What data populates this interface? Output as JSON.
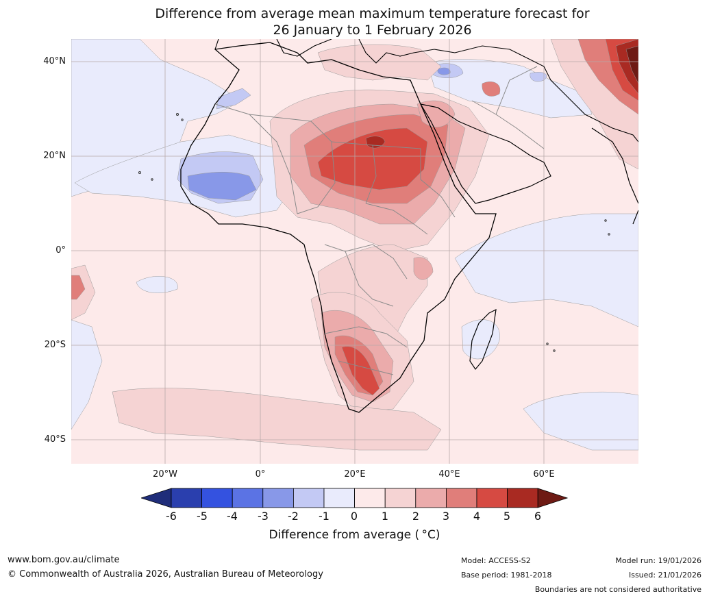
{
  "title": {
    "line1": "Difference from average mean maximum temperature forecast for",
    "line2": "26 January to 1 February 2026"
  },
  "axes": {
    "lat_labels": [
      "40°N",
      "20°N",
      "0°",
      "20°S",
      "40°S"
    ],
    "lon_labels": [
      "20°W",
      "0°",
      "20°E",
      "40°E",
      "60°E"
    ]
  },
  "colorbar": {
    "ticks": [
      "-6",
      "-5",
      "-4",
      "-3",
      "-2",
      "-1",
      "0",
      "1",
      "2",
      "3",
      "4",
      "5",
      "6"
    ],
    "label": "Difference from average ( °C)",
    "colors": {
      "below_min": "#1f2d7a",
      "m6_m5": "#2a3fae",
      "m5_m4": "#3452e0",
      "m4_m3": "#5b73e4",
      "m3_m2": "#8898e8",
      "m2_m1": "#c3c9f4",
      "m1_0": "#e9ebfc",
      "0_1": "#fdeaea",
      "1_2": "#f5d3d3",
      "2_3": "#ebabab",
      "3_4": "#e07e7a",
      "4_5": "#d64a42",
      "5_6": "#a92a22",
      "above_max": "#6e1a14"
    }
  },
  "footer": {
    "website": "www.bom.gov.au/climate",
    "copyright": "© Commonwealth of Australia 2026, Australian Bureau of Meteorology",
    "model": "Model: ACCESS-S2",
    "base_period": "Base period: 1981-2018",
    "model_run": "Model run: 19/01/2026",
    "issued": "Issued: 21/01/2026",
    "disclaimer": "Boundaries are not considered authoritative"
  }
}
